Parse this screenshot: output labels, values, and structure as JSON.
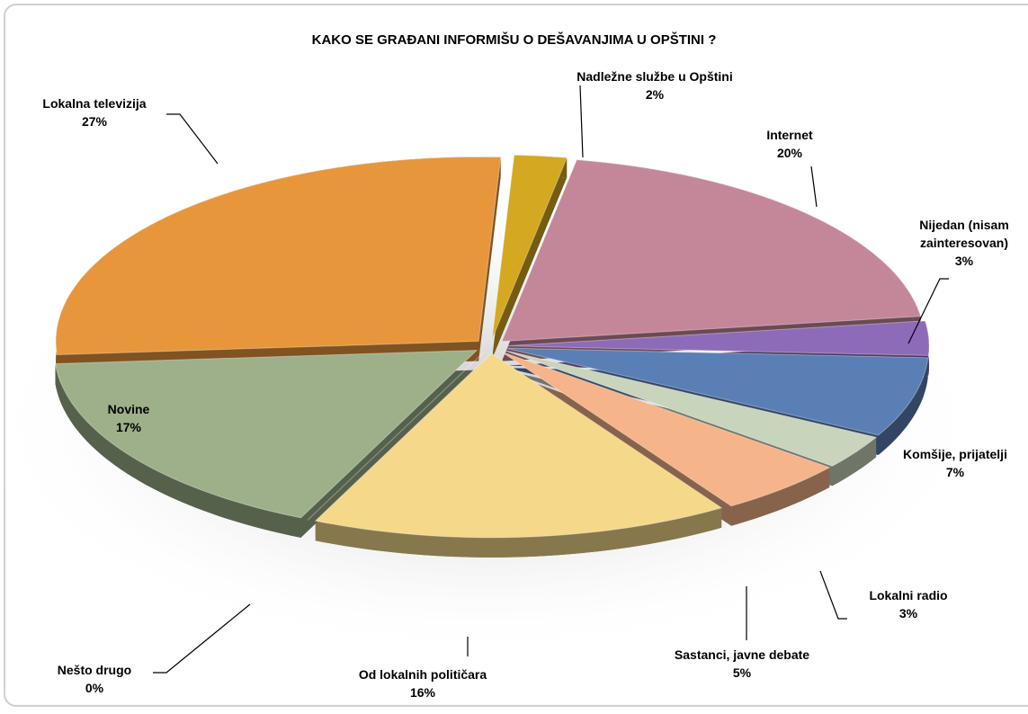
{
  "chart_data": {
    "type": "pie3d",
    "title": "KAKO SE GRAĐANI INFORMIŠU O DEŠAVANJIMA U OPŠTINI ?",
    "categories": [
      "Nadležne službe u Opštini",
      "Internet",
      "Nijedan (nisam zainteresovan)",
      "Komšije, prijatelji",
      "Lokalni radio",
      "Sastanci, javne debate",
      "Od lokalnih političara",
      "Nešto drugo",
      "Novine",
      "Lokalna televizija"
    ],
    "values": [
      2,
      20,
      3,
      7,
      3,
      5,
      16,
      0,
      17,
      27
    ],
    "value_labels": [
      "2%",
      "20%",
      "3%",
      "7%",
      "3%",
      "5%",
      "16%",
      "0%",
      "17%",
      "27%"
    ],
    "colors": [
      "#d4a820",
      "#c4879a",
      "#8e6bb8",
      "#5a7fb5",
      "#c9d4bc",
      "#f5b48a",
      "#f5d88a",
      "#b48aa8",
      "#9db08a",
      "#e8963c"
    ]
  }
}
